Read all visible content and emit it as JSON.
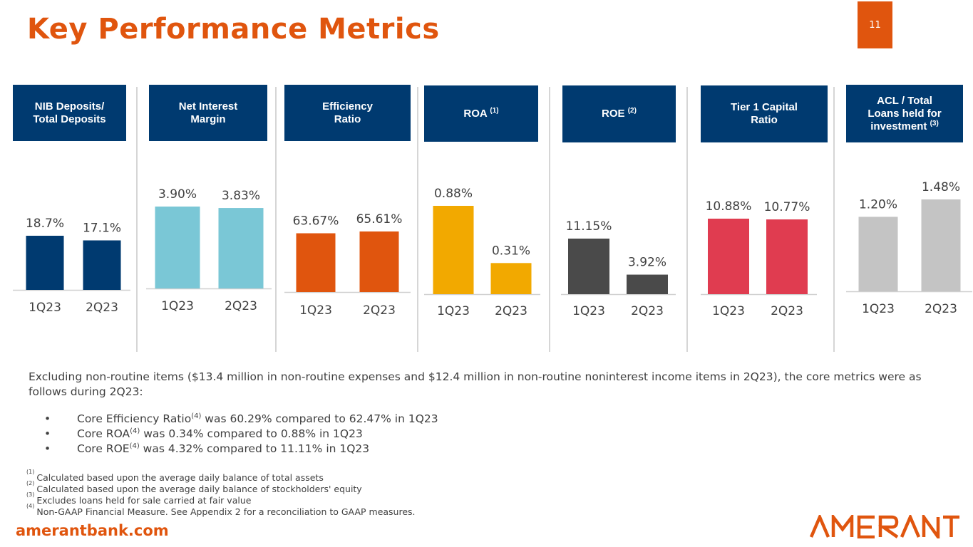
{
  "page": {
    "title": "Key Performance Metrics",
    "page_number": "11",
    "website": "amerantbank.com",
    "logo_text": "AMERANT",
    "colors": {
      "brand_orange": "#e0550e",
      "navy": "#003a70"
    }
  },
  "panels": [
    {
      "header_lines": [
        "NIB Deposits/",
        "Total Deposits"
      ],
      "header_sup": ""
    },
    {
      "header_lines": [
        "Net Interest",
        "Margin"
      ],
      "header_sup": ""
    },
    {
      "header_lines": [
        "Efficiency",
        "Ratio"
      ],
      "header_sup": ""
    },
    {
      "header_lines": [
        "ROA"
      ],
      "header_sup": "(1)"
    },
    {
      "header_lines": [
        "ROE"
      ],
      "header_sup": "(2)"
    },
    {
      "header_lines": [
        "Tier 1 Capital",
        "Ratio"
      ],
      "header_sup": ""
    },
    {
      "header_lines": [
        "ACL / Total",
        "Loans held for",
        "investment"
      ],
      "header_sup": "(3)"
    }
  ],
  "chart_data": [
    {
      "type": "bar",
      "title": "NIB Deposits/ Total Deposits",
      "categories": [
        "1Q23",
        "2Q23"
      ],
      "values": [
        18.7,
        17.1
      ],
      "labels": [
        "18.7%",
        "17.1%"
      ],
      "color": "#003a70"
    },
    {
      "type": "bar",
      "title": "Net Interest Margin",
      "categories": [
        "1Q23",
        "2Q23"
      ],
      "values": [
        3.9,
        3.83
      ],
      "labels": [
        "3.90%",
        "3.83%"
      ],
      "color": "#7ac7d6"
    },
    {
      "type": "bar",
      "title": "Efficiency Ratio",
      "categories": [
        "1Q23",
        "2Q23"
      ],
      "values": [
        63.67,
        65.61
      ],
      "labels": [
        "63.67%",
        "65.61%"
      ],
      "color": "#e0550e"
    },
    {
      "type": "bar",
      "title": "ROA (1)",
      "categories": [
        "1Q23",
        "2Q23"
      ],
      "values": [
        0.88,
        0.31
      ],
      "labels": [
        "0.88%",
        "0.31%"
      ],
      "color": "#f2a900"
    },
    {
      "type": "bar",
      "title": "ROE (2)",
      "categories": [
        "1Q23",
        "2Q23"
      ],
      "values": [
        11.15,
        3.92
      ],
      "labels": [
        "11.15%",
        "3.92%"
      ],
      "color": "#4a4a4a"
    },
    {
      "type": "bar",
      "title": "Tier 1 Capital Ratio",
      "categories": [
        "1Q23",
        "2Q23"
      ],
      "values": [
        10.88,
        10.77
      ],
      "labels": [
        "10.88%",
        "10.77%"
      ],
      "color": "#e03c50"
    },
    {
      "type": "bar",
      "title": "ACL / Total Loans held for investment (3)",
      "categories": [
        "1Q23",
        "2Q23"
      ],
      "values": [
        1.2,
        1.48
      ],
      "labels": [
        "1.20%",
        "1.48%"
      ],
      "color": "#c4c4c4"
    }
  ],
  "summary": {
    "text": "Excluding non-routine items ($13.4 million in non-routine expenses and $12.4 million in non-routine noninterest income items in 2Q23), the core metrics were as follows during 2Q23:",
    "bullets": [
      {
        "bullet": "•",
        "pre": "Core Efficiency Ratio",
        "sup": "(4)",
        "post": " was 60.29% compared to 62.47% in 1Q23"
      },
      {
        "bullet": "•",
        "pre": "Core ROA",
        "sup": "(4)",
        "post": " was 0.34% compared to 0.88% in 1Q23"
      },
      {
        "bullet": "•",
        "pre": "Core ROE",
        "sup": "(4)",
        "post": " was 4.32% compared to 11.11% in 1Q23"
      }
    ]
  },
  "footnotes": [
    {
      "num": "(1)",
      "text": "Calculated based upon the average daily balance of total assets"
    },
    {
      "num": "(2)",
      "text": "Calculated based upon the average daily balance of stockholders' equity"
    },
    {
      "num": "(3)",
      "text": "Excludes loans held for sale carried at fair value"
    },
    {
      "num": "(4)",
      "text": "Non-GAAP Financial Measure. See Appendix 2 for a reconciliation to GAAP measures."
    }
  ]
}
